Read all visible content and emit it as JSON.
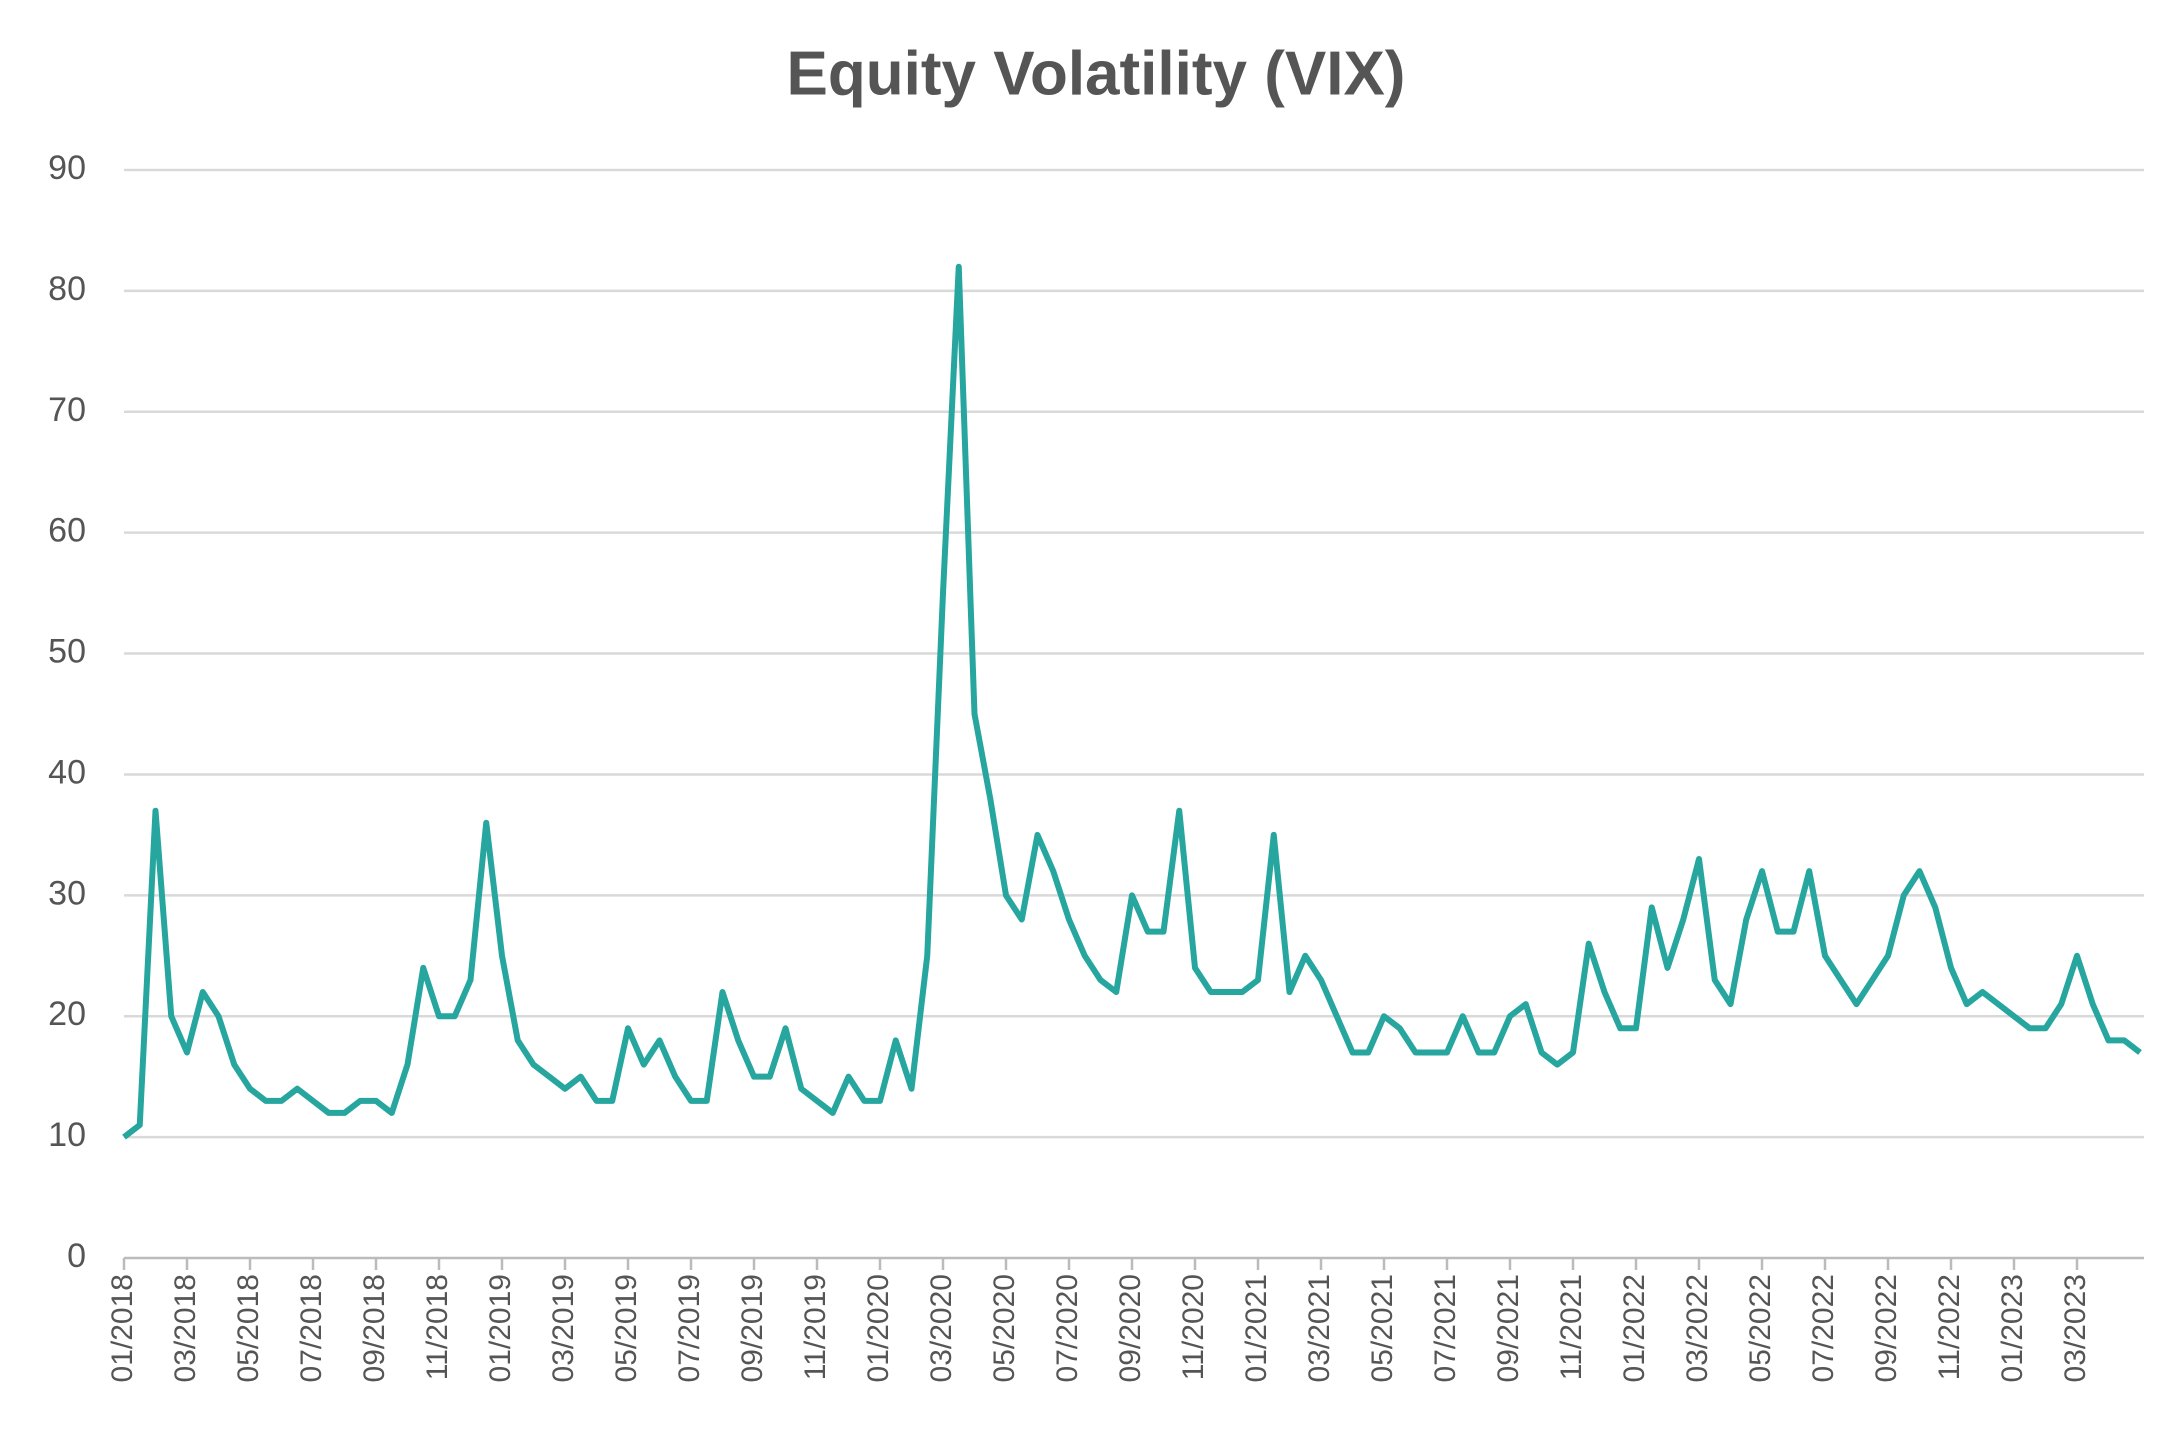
{
  "chart_data": {
    "type": "line",
    "title": "Equity Volatility (VIX)",
    "categories": [
      "01/2018",
      null,
      null,
      null,
      "03/2018",
      null,
      null,
      null,
      "05/2018",
      null,
      null,
      null,
      "07/2018",
      null,
      null,
      null,
      "09/2018",
      null,
      null,
      null,
      "11/2018",
      null,
      null,
      null,
      "01/2019",
      null,
      null,
      null,
      "03/2019",
      null,
      null,
      null,
      "05/2019",
      null,
      null,
      null,
      "07/2019",
      null,
      null,
      null,
      "09/2019",
      null,
      null,
      null,
      "11/2019",
      null,
      null,
      null,
      "01/2020",
      null,
      null,
      null,
      "03/2020",
      null,
      null,
      null,
      "05/2020",
      null,
      null,
      null,
      "07/2020",
      null,
      null,
      null,
      "09/2020",
      null,
      null,
      null,
      "11/2020",
      null,
      null,
      null,
      "01/2021",
      null,
      null,
      null,
      "03/2021",
      null,
      null,
      null,
      "05/2021",
      null,
      null,
      null,
      "07/2021",
      null,
      null,
      null,
      "09/2021",
      null,
      null,
      null,
      "11/2021",
      null,
      null,
      null,
      "01/2022",
      null,
      null,
      null,
      "03/2022",
      null,
      null,
      null,
      "05/2022",
      null,
      null,
      null,
      "07/2022",
      null,
      null,
      null,
      "09/2022",
      null,
      null,
      null,
      "11/2022",
      null,
      null,
      null,
      "01/2023",
      null,
      null,
      null,
      "03/2023",
      null,
      null,
      null,
      null
    ],
    "series": [
      {
        "name": "VIX",
        "color": "#26a69e",
        "values": [
          10,
          11,
          37,
          20,
          17,
          22,
          20,
          16,
          14,
          13,
          13,
          14,
          13,
          12,
          12,
          13,
          13,
          12,
          16,
          24,
          20,
          20,
          23,
          36,
          25,
          18,
          16,
          15,
          14,
          15,
          13,
          13,
          19,
          16,
          18,
          15,
          13,
          13,
          22,
          18,
          15,
          15,
          19,
          14,
          13,
          12,
          15,
          13,
          13,
          18,
          14,
          25,
          55,
          82,
          45,
          38,
          30,
          28,
          35,
          32,
          28,
          25,
          23,
          22,
          30,
          27,
          27,
          37,
          24,
          22,
          22,
          22,
          23,
          35,
          22,
          25,
          23,
          20,
          17,
          17,
          20,
          19,
          17,
          17,
          17,
          20,
          17,
          17,
          20,
          21,
          17,
          16,
          17,
          26,
          22,
          19,
          19,
          29,
          24,
          28,
          33,
          23,
          21,
          28,
          32,
          27,
          27,
          32,
          25,
          23,
          21,
          23,
          25,
          30,
          32,
          29,
          24,
          21,
          22,
          21,
          20,
          19,
          19,
          21,
          25,
          21,
          18,
          18,
          17
        ]
      }
    ],
    "ylim": [
      0,
      90
    ],
    "yticks": [
      0,
      10,
      20,
      30,
      40,
      50,
      60,
      70,
      80,
      90
    ],
    "grid": true
  }
}
